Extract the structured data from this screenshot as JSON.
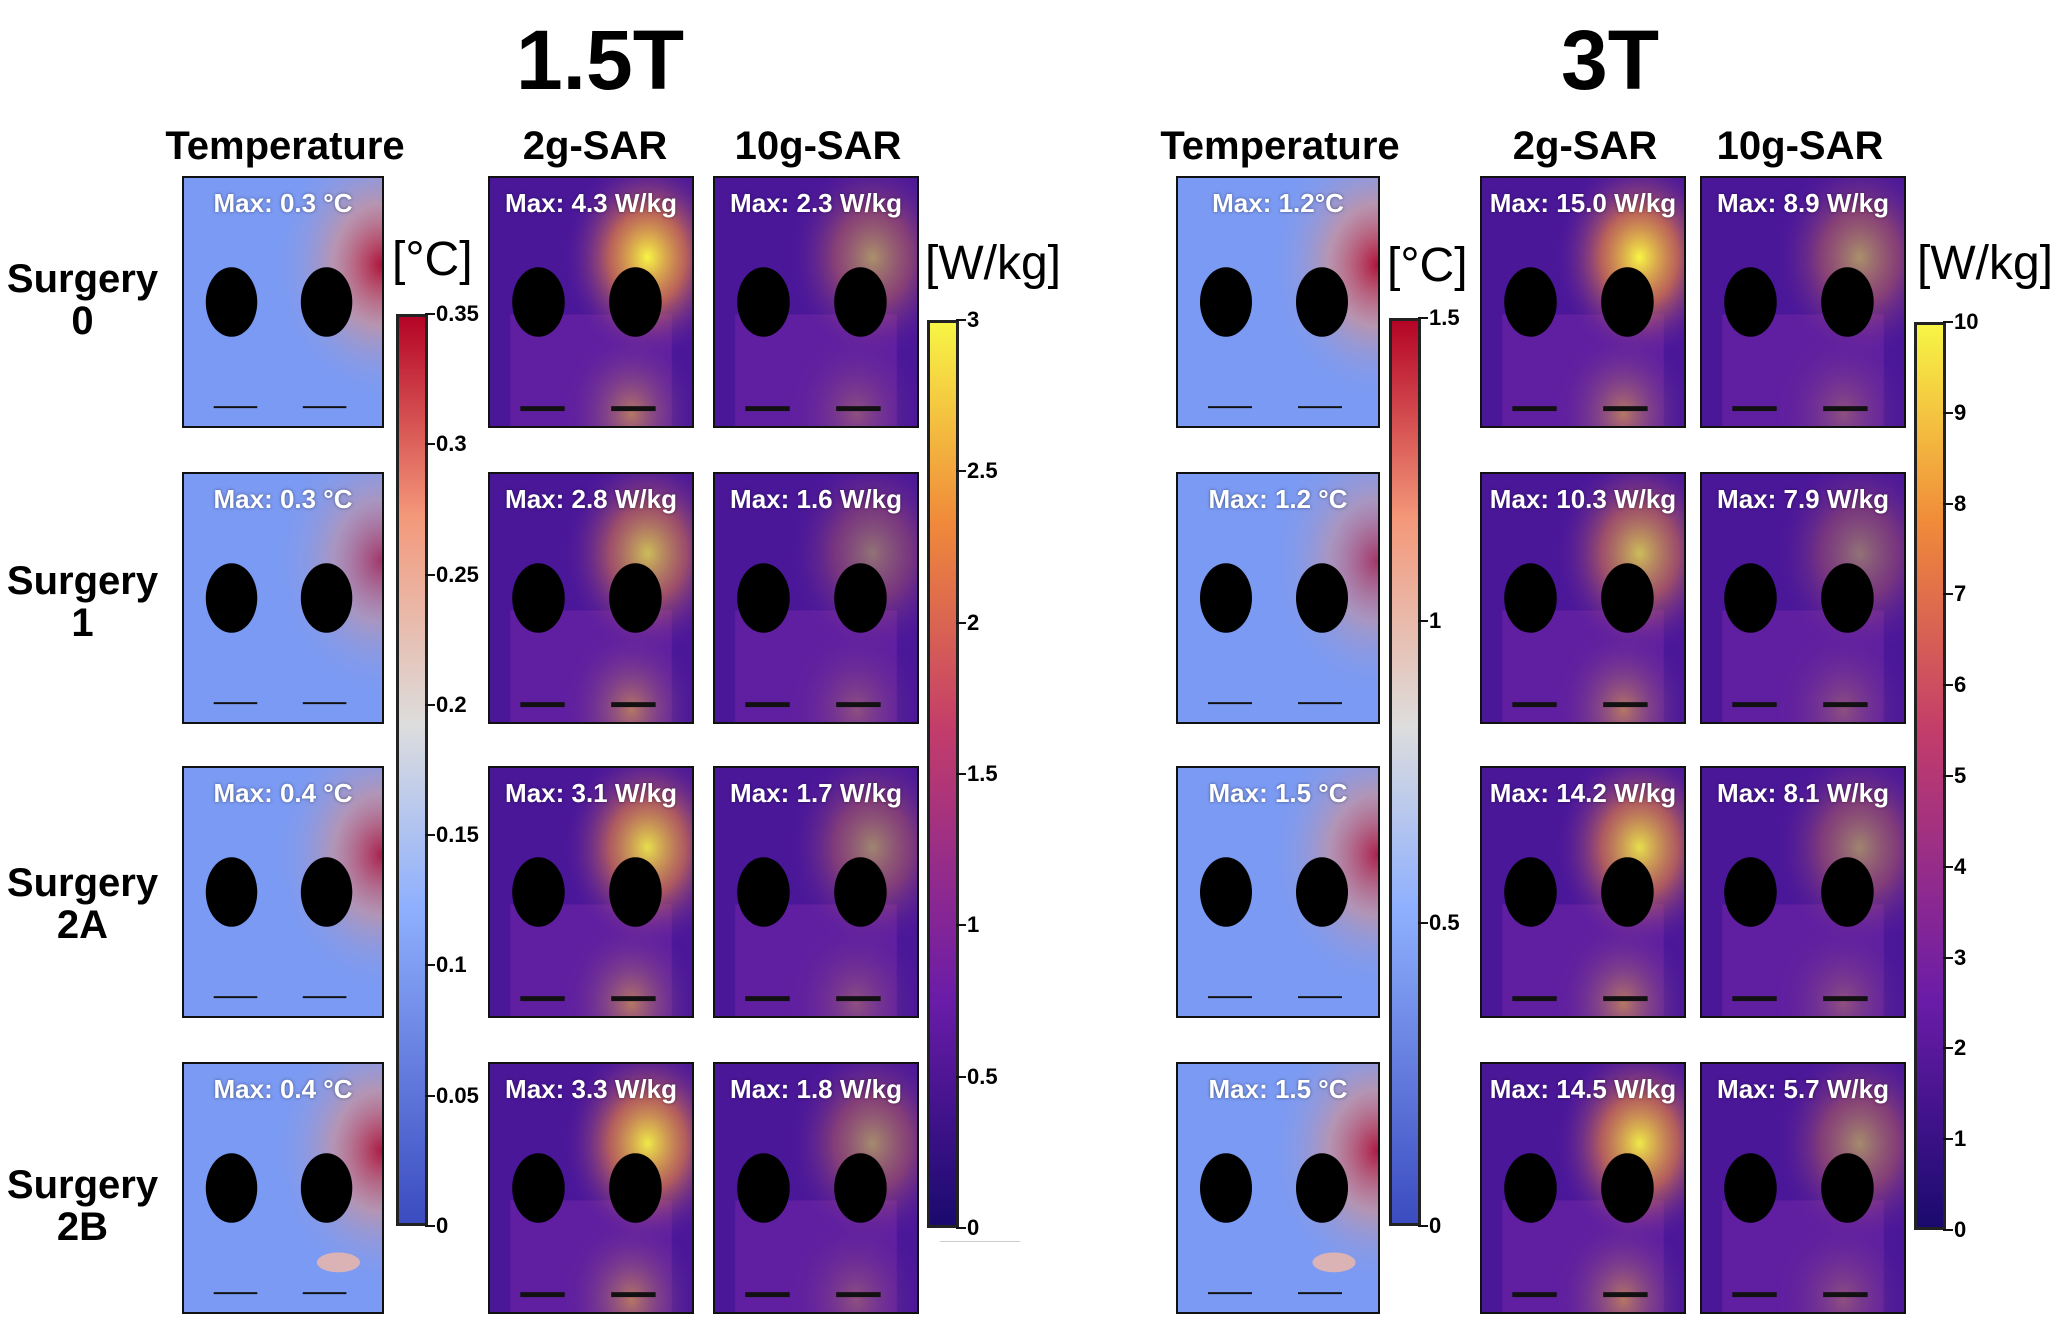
{
  "figure": {
    "fields": [
      {
        "title": "1.5T",
        "columns": [
          "Temperature",
          "2g-SAR",
          "10g-SAR"
        ],
        "temp_colorbar": {
          "unit": "[°C]",
          "ticks": [
            "0",
            "0.05",
            "0.1",
            "0.15",
            "0.2",
            "0.25",
            "0.3",
            "0.35"
          ],
          "max": 0.35
        },
        "sar_colorbar": {
          "unit": "[W/kg]",
          "ticks": [
            "0",
            "0.5",
            "1",
            "1.5",
            "2",
            "2.5",
            "3"
          ],
          "max": 3
        },
        "rows": [
          {
            "temperature": "Max: 0.3 °C",
            "sar2g": "Max: 4.3 W/kg",
            "sar10g": "Max: 2.3 W/kg"
          },
          {
            "temperature": "Max: 0.3 °C",
            "sar2g": "Max: 2.8 W/kg",
            "sar10g": "Max: 1.6 W/kg"
          },
          {
            "temperature": "Max: 0.4 °C",
            "sar2g": "Max: 3.1 W/kg",
            "sar10g": "Max: 1.7 W/kg"
          },
          {
            "temperature": "Max: 0.4 °C",
            "sar2g": "Max: 3.3 W/kg",
            "sar10g": "Max: 1.8 W/kg"
          }
        ]
      },
      {
        "title": "3T",
        "columns": [
          "Temperature",
          "2g-SAR",
          "10g-SAR"
        ],
        "temp_colorbar": {
          "unit": "[°C]",
          "ticks": [
            "0",
            "0.5",
            "1",
            "1.5"
          ],
          "max": 1.5
        },
        "sar_colorbar": {
          "unit": "[W/kg]",
          "ticks": [
            "0",
            "1",
            "2",
            "3",
            "4",
            "5",
            "6",
            "7",
            "8",
            "9",
            "10"
          ],
          "max": 10
        },
        "rows": [
          {
            "temperature": "Max: 1.2°C",
            "sar2g": "Max: 15.0 W/kg",
            "sar10g": "Max: 8.9 W/kg"
          },
          {
            "temperature": "Max: 1.2 °C",
            "sar2g": "Max: 10.3 W/kg",
            "sar10g": "Max: 7.9 W/kg"
          },
          {
            "temperature": "Max: 1.5 °C",
            "sar2g": "Max: 14.2 W/kg",
            "sar10g": "Max: 8.1 W/kg"
          },
          {
            "temperature": "Max: 1.5 °C",
            "sar2g": "Max: 14.5 W/kg",
            "sar10g": "Max: 5.7 W/kg"
          }
        ]
      }
    ],
    "row_labels": [
      {
        "line1": "Surgery",
        "line2": "0"
      },
      {
        "line1": "Surgery",
        "line2": "1"
      },
      {
        "line1": "Surgery",
        "line2": "2A"
      },
      {
        "line1": "Surgery",
        "line2": "2B"
      }
    ],
    "colors": {
      "temp_low": "#3b4cc0",
      "temp_mid": "#dddddd",
      "temp_high": "#b40426",
      "sar_low": "#1a0a6e",
      "sar_mid": "#c33d6a",
      "sar_high": "#f7f545"
    }
  }
}
